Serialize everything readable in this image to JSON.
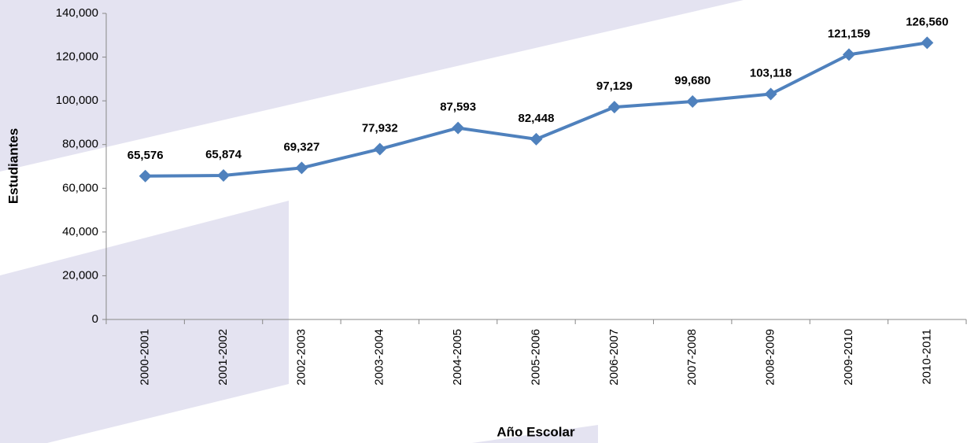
{
  "chart_data": {
    "type": "line",
    "x_label": "Año Escolar",
    "y_label": "Estudiantes",
    "categories": [
      "2000-2001",
      "2001-2002",
      "2002-2003",
      "2003-2004",
      "2004-2005",
      "2005-2006",
      "2006-2007",
      "2007-2008",
      "2008-2009",
      "2009-2010",
      "2010-2011"
    ],
    "series": [
      {
        "name": "Estudiantes",
        "color": "#4f81bd",
        "values": [
          65576,
          65874,
          69327,
          77932,
          87593,
          82448,
          97129,
          99680,
          103118,
          121159,
          126560
        ],
        "value_labels": [
          "65,576",
          "65,874",
          "69,327",
          "77,932",
          "87,593",
          "82,448",
          "97,129",
          "99,680",
          "103,118",
          "121,159",
          "126,560"
        ]
      }
    ],
    "ylim": [
      0,
      140000
    ],
    "yticks": [
      0,
      {
        "value": 20000,
        "label": "20,000"
      },
      {
        "value": 40000,
        "label": "40,000"
      },
      {
        "value": 60000,
        "label": "60,000"
      },
      {
        "value": 80000,
        "label": "80,000"
      },
      {
        "value": 100000,
        "label": "100,000"
      },
      {
        "value": 120000,
        "label": "120,000"
      },
      {
        "value": 140000,
        "label": "140,000"
      }
    ],
    "grid": false
  }
}
